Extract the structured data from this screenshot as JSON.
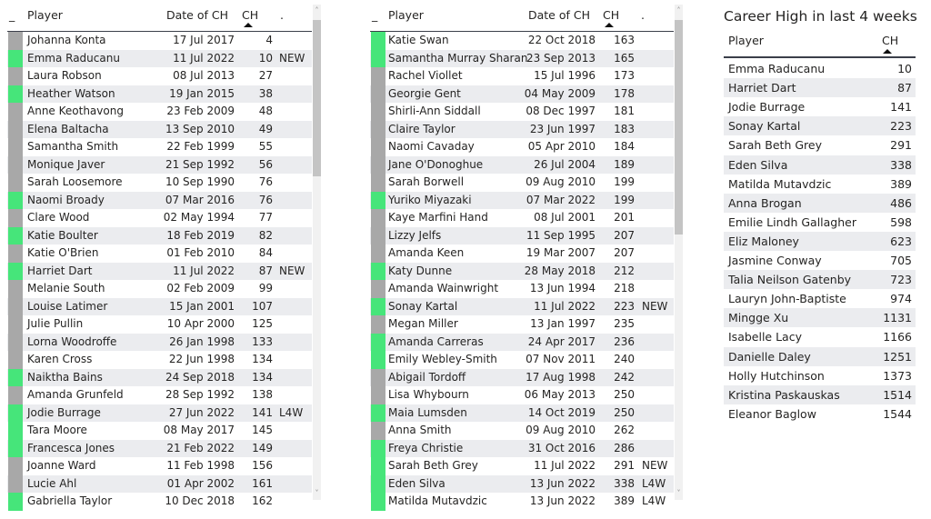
{
  "colors": {
    "highlight": "#46e57a",
    "neutral": "#a8a8a8",
    "alt_row": "#ebecef"
  },
  "table1": {
    "headers": {
      "indicator": "_",
      "player": "Player",
      "date": "Date of CH",
      "ch": "CH",
      "tag": "."
    },
    "sorted_by": "CH",
    "rows": [
      {
        "player": "Johanna Konta",
        "date": "17 Jul 2017",
        "ch": "4",
        "tag": "",
        "green": false
      },
      {
        "player": "Emma Raducanu",
        "date": "11 Jul 2022",
        "ch": "10",
        "tag": "NEW",
        "green": true
      },
      {
        "player": "Laura Robson",
        "date": "08 Jul 2013",
        "ch": "27",
        "tag": "",
        "green": false
      },
      {
        "player": "Heather Watson",
        "date": "19 Jan 2015",
        "ch": "38",
        "tag": "",
        "green": true
      },
      {
        "player": "Anne Keothavong",
        "date": "23 Feb 2009",
        "ch": "48",
        "tag": "",
        "green": false
      },
      {
        "player": "Elena Baltacha",
        "date": "13 Sep 2010",
        "ch": "49",
        "tag": "",
        "green": false
      },
      {
        "player": "Samantha Smith",
        "date": "22 Feb 1999",
        "ch": "55",
        "tag": "",
        "green": false
      },
      {
        "player": "Monique Javer",
        "date": "21 Sep 1992",
        "ch": "56",
        "tag": "",
        "green": false
      },
      {
        "player": "Sarah Loosemore",
        "date": "10 Sep 1990",
        "ch": "76",
        "tag": "",
        "green": false
      },
      {
        "player": "Naomi Broady",
        "date": "07 Mar 2016",
        "ch": "76",
        "tag": "",
        "green": true
      },
      {
        "player": "Clare Wood",
        "date": "02 May 1994",
        "ch": "77",
        "tag": "",
        "green": false
      },
      {
        "player": "Katie Boulter",
        "date": "18 Feb 2019",
        "ch": "82",
        "tag": "",
        "green": true
      },
      {
        "player": "Katie O'Brien",
        "date": "01 Feb 2010",
        "ch": "84",
        "tag": "",
        "green": false
      },
      {
        "player": "Harriet Dart",
        "date": "11 Jul 2022",
        "ch": "87",
        "tag": "NEW",
        "green": true
      },
      {
        "player": "Melanie South",
        "date": "02 Feb 2009",
        "ch": "99",
        "tag": "",
        "green": false
      },
      {
        "player": "Louise Latimer",
        "date": "15 Jan 2001",
        "ch": "107",
        "tag": "",
        "green": false
      },
      {
        "player": "Julie Pullin",
        "date": "10 Apr 2000",
        "ch": "125",
        "tag": "",
        "green": false
      },
      {
        "player": "Lorna Woodroffe",
        "date": "26 Jan 1998",
        "ch": "133",
        "tag": "",
        "green": false
      },
      {
        "player": "Karen Cross",
        "date": "22 Jun 1998",
        "ch": "134",
        "tag": "",
        "green": false
      },
      {
        "player": "Naiktha Bains",
        "date": "24 Sep 2018",
        "ch": "134",
        "tag": "",
        "green": true
      },
      {
        "player": "Amanda Grunfeld",
        "date": "28 Sep 1992",
        "ch": "138",
        "tag": "",
        "green": false
      },
      {
        "player": "Jodie Burrage",
        "date": "27 Jun 2022",
        "ch": "141",
        "tag": "L4W",
        "green": true
      },
      {
        "player": "Tara Moore",
        "date": "08 May 2017",
        "ch": "145",
        "tag": "",
        "green": true
      },
      {
        "player": "Francesca Jones",
        "date": "21 Feb 2022",
        "ch": "149",
        "tag": "",
        "green": true
      },
      {
        "player": "Joanne Ward",
        "date": "11 Feb 1998",
        "ch": "156",
        "tag": "",
        "green": false
      },
      {
        "player": "Lucie Ahl",
        "date": "01 Apr 2002",
        "ch": "161",
        "tag": "",
        "green": false
      },
      {
        "player": "Gabriella Taylor",
        "date": "10 Dec 2018",
        "ch": "162",
        "tag": "",
        "green": true
      }
    ]
  },
  "table2": {
    "headers": {
      "indicator": "_",
      "player": "Player",
      "date": "Date of CH",
      "ch": "CH",
      "tag": "."
    },
    "sorted_by": "CH",
    "rows": [
      {
        "player": "Katie Swan",
        "date": "22 Oct 2018",
        "ch": "163",
        "tag": "",
        "green": true
      },
      {
        "player": "Samantha Murray Sharan",
        "date": "23 Sep 2013",
        "ch": "165",
        "tag": "",
        "green": true
      },
      {
        "player": "Rachel Viollet",
        "date": "15 Jul 1996",
        "ch": "173",
        "tag": "",
        "green": false
      },
      {
        "player": "Georgie Gent",
        "date": "04 May 2009",
        "ch": "178",
        "tag": "",
        "green": false
      },
      {
        "player": "Shirli-Ann Siddall",
        "date": "08 Dec 1997",
        "ch": "181",
        "tag": "",
        "green": false
      },
      {
        "player": "Claire Taylor",
        "date": "23 Jun 1997",
        "ch": "183",
        "tag": "",
        "green": false
      },
      {
        "player": "Naomi Cavaday",
        "date": "05 Apr 2010",
        "ch": "184",
        "tag": "",
        "green": false
      },
      {
        "player": "Jane O'Donoghue",
        "date": "26 Jul 2004",
        "ch": "189",
        "tag": "",
        "green": false
      },
      {
        "player": "Sarah Borwell",
        "date": "09 Aug 2010",
        "ch": "199",
        "tag": "",
        "green": false
      },
      {
        "player": "Yuriko Miyazaki",
        "date": "07 Mar 2022",
        "ch": "199",
        "tag": "",
        "green": true
      },
      {
        "player": "Kaye Marfini Hand",
        "date": "08 Jul 2001",
        "ch": "201",
        "tag": "",
        "green": false
      },
      {
        "player": "Lizzy Jelfs",
        "date": "11 Sep 1995",
        "ch": "207",
        "tag": "",
        "green": false
      },
      {
        "player": "Amanda Keen",
        "date": "19 Mar 2007",
        "ch": "207",
        "tag": "",
        "green": false
      },
      {
        "player": "Katy Dunne",
        "date": "28 May 2018",
        "ch": "212",
        "tag": "",
        "green": true
      },
      {
        "player": "Amanda Wainwright",
        "date": "13 Jun 1994",
        "ch": "218",
        "tag": "",
        "green": false
      },
      {
        "player": "Sonay Kartal",
        "date": "11 Jul 2022",
        "ch": "223",
        "tag": "NEW",
        "green": true
      },
      {
        "player": "Megan Miller",
        "date": "13 Jan 1997",
        "ch": "235",
        "tag": "",
        "green": false
      },
      {
        "player": "Amanda Carreras",
        "date": "24 Apr 2017",
        "ch": "236",
        "tag": "",
        "green": true
      },
      {
        "player": "Emily Webley-Smith",
        "date": "07 Nov 2011",
        "ch": "240",
        "tag": "",
        "green": true
      },
      {
        "player": "Abigail Tordoff",
        "date": "17 Aug 1998",
        "ch": "242",
        "tag": "",
        "green": false
      },
      {
        "player": "Lisa Whybourn",
        "date": "06 May 2013",
        "ch": "250",
        "tag": "",
        "green": false
      },
      {
        "player": "Maia Lumsden",
        "date": "14 Oct 2019",
        "ch": "250",
        "tag": "",
        "green": true
      },
      {
        "player": "Anna Smith",
        "date": "09 Aug 2010",
        "ch": "262",
        "tag": "",
        "green": false
      },
      {
        "player": "Freya Christie",
        "date": "31 Oct 2016",
        "ch": "286",
        "tag": "",
        "green": true
      },
      {
        "player": "Sarah Beth Grey",
        "date": "11 Jul 2022",
        "ch": "291",
        "tag": "NEW",
        "green": true
      },
      {
        "player": "Eden Silva",
        "date": "13 Jun 2022",
        "ch": "338",
        "tag": "L4W",
        "green": true
      },
      {
        "player": "Matilda Mutavdzic",
        "date": "13 Jun 2022",
        "ch": "389",
        "tag": "L4W",
        "green": true
      }
    ]
  },
  "career_high": {
    "title": "Career High in last 4 weeks",
    "headers": {
      "player": "Player",
      "ch": "CH"
    },
    "sorted_by": "CH",
    "rows": [
      {
        "player": "Emma Raducanu",
        "ch": "10"
      },
      {
        "player": "Harriet Dart",
        "ch": "87"
      },
      {
        "player": "Jodie Burrage",
        "ch": "141"
      },
      {
        "player": "Sonay Kartal",
        "ch": "223"
      },
      {
        "player": "Sarah Beth Grey",
        "ch": "291"
      },
      {
        "player": "Eden Silva",
        "ch": "338"
      },
      {
        "player": "Matilda Mutavdzic",
        "ch": "389"
      },
      {
        "player": "Anna Brogan",
        "ch": "486"
      },
      {
        "player": "Emilie Lindh Gallagher",
        "ch": "598"
      },
      {
        "player": "Eliz Maloney",
        "ch": "623"
      },
      {
        "player": "Jasmine Conway",
        "ch": "705"
      },
      {
        "player": "Talia Neilson Gatenby",
        "ch": "723"
      },
      {
        "player": "Lauryn John-Baptiste",
        "ch": "974"
      },
      {
        "player": "Mingge Xu",
        "ch": "1131"
      },
      {
        "player": "Isabelle Lacy",
        "ch": "1166"
      },
      {
        "player": "Danielle Daley",
        "ch": "1251"
      },
      {
        "player": "Holly Hutchinson",
        "ch": "1373"
      },
      {
        "player": "Kristina Paskauskas",
        "ch": "1514"
      },
      {
        "player": "Eleanor Baglow",
        "ch": "1544"
      }
    ]
  }
}
